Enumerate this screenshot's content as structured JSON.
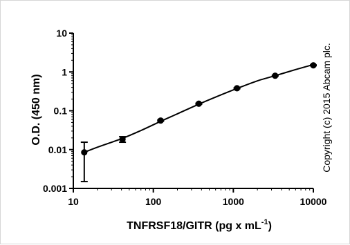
{
  "chart_data": {
    "type": "scatter",
    "title": "",
    "xlabel": "TNFRSF18/GITR (pg x mL",
    "xlabel_superscript": "-1",
    "xlabel_suffix": ")",
    "ylabel": "O.D. (450 nm)",
    "xscale": "log",
    "yscale": "log",
    "xlim": [
      10,
      10000
    ],
    "ylim": [
      0.001,
      10
    ],
    "x_ticks": [
      10,
      100,
      1000,
      10000
    ],
    "x_tick_labels": [
      "10",
      "100",
      "1000",
      "10000"
    ],
    "y_ticks": [
      0.001,
      0.01,
      0.1,
      1,
      10
    ],
    "y_tick_labels": [
      "0.001",
      "0.01",
      "0.1",
      "1",
      "10"
    ],
    "grid": false,
    "series": [
      {
        "x": [
          13.7,
          41.2,
          123.5,
          370.4,
          1111,
          3333,
          10000
        ],
        "y": [
          0.0085,
          0.0185,
          0.056,
          0.152,
          0.38,
          0.8,
          1.48
        ],
        "error": [
          0.007,
          0.003,
          0.002,
          0.004,
          0.01,
          0.02,
          0.03
        ]
      }
    ],
    "fit_curve": {
      "x": [
        13.7,
        20,
        41.2,
        70,
        123.5,
        200,
        370.4,
        600,
        1111,
        2000,
        3333,
        6000,
        10000
      ],
      "y": [
        0.0085,
        0.0115,
        0.0195,
        0.031,
        0.0535,
        0.0835,
        0.148,
        0.225,
        0.375,
        0.59,
        0.8,
        1.15,
        1.55
      ]
    },
    "annotation": "Copyright (c) 2015 Abcam plc.",
    "colors": {
      "marks": "#000000",
      "background": "#ffffff",
      "frame": "#d6d6d6"
    }
  }
}
